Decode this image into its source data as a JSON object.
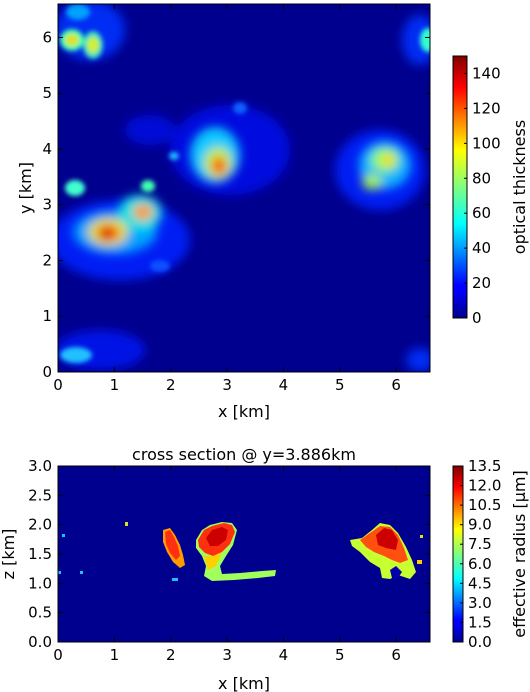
{
  "chart_data": [
    {
      "type": "heatmap",
      "title": "",
      "xlabel": "x [km]",
      "ylabel": "y [km]",
      "xlim": [
        0,
        6.6
      ],
      "ylim": [
        0,
        6.6
      ],
      "x_ticks": [
        "0",
        "1",
        "2",
        "3",
        "4",
        "5",
        "6"
      ],
      "y_ticks": [
        "0",
        "1",
        "2",
        "3",
        "4",
        "5",
        "6"
      ],
      "colorbar": {
        "label": "optical thickness",
        "range": [
          0,
          150
        ],
        "ticks": [
          "0",
          "20",
          "40",
          "60",
          "80",
          "100",
          "120",
          "140"
        ]
      },
      "colormap": "jet",
      "background_color": "#00008f",
      "features": [
        {
          "x": 0.85,
          "y": 2.5,
          "value": 150
        },
        {
          "x": 1.5,
          "y": 2.8,
          "value": 120
        },
        {
          "x": 2.9,
          "y": 3.8,
          "value": 125
        },
        {
          "x": 5.9,
          "y": 3.8,
          "value": 95
        },
        {
          "x": 0.3,
          "y": 6.0,
          "value": 75
        },
        {
          "x": 0.7,
          "y": 5.9,
          "value": 70
        },
        {
          "x": 0.3,
          "y": 3.3,
          "value": 65
        },
        {
          "x": 6.5,
          "y": 6.0,
          "value": 60
        }
      ]
    },
    {
      "type": "heatmap",
      "title": "cross section @ y=3.886km",
      "xlabel": "x [km]",
      "ylabel": "z [km]",
      "xlim": [
        0,
        6.6
      ],
      "ylim": [
        0,
        3.0
      ],
      "x_ticks": [
        "0",
        "1",
        "2",
        "3",
        "4",
        "5",
        "6"
      ],
      "y_ticks": [
        "0.0",
        "0.5",
        "1.0",
        "1.5",
        "2.0",
        "2.5",
        "3.0"
      ],
      "colorbar": {
        "label": "effective radius [μm]",
        "range": [
          0,
          13.5
        ],
        "ticks": [
          "0.0",
          "1.5",
          "3.0",
          "4.5",
          "6.0",
          "7.5",
          "9.0",
          "10.5",
          "12.0",
          "13.5"
        ]
      },
      "colormap": "jet",
      "background_color": "#00008f",
      "features": [
        {
          "x_range": [
            1.9,
            2.3
          ],
          "z_range": [
            1.15,
            1.95
          ],
          "value": 12
        },
        {
          "x_range": [
            2.5,
            3.2
          ],
          "z_range": [
            1.1,
            2.0
          ],
          "value": 13
        },
        {
          "x_range": [
            2.7,
            3.9
          ],
          "z_range": [
            1.05,
            1.2
          ],
          "value": 6
        },
        {
          "x_range": [
            5.3,
            6.4
          ],
          "z_range": [
            1.05,
            2.0
          ],
          "value": 12
        }
      ]
    }
  ]
}
